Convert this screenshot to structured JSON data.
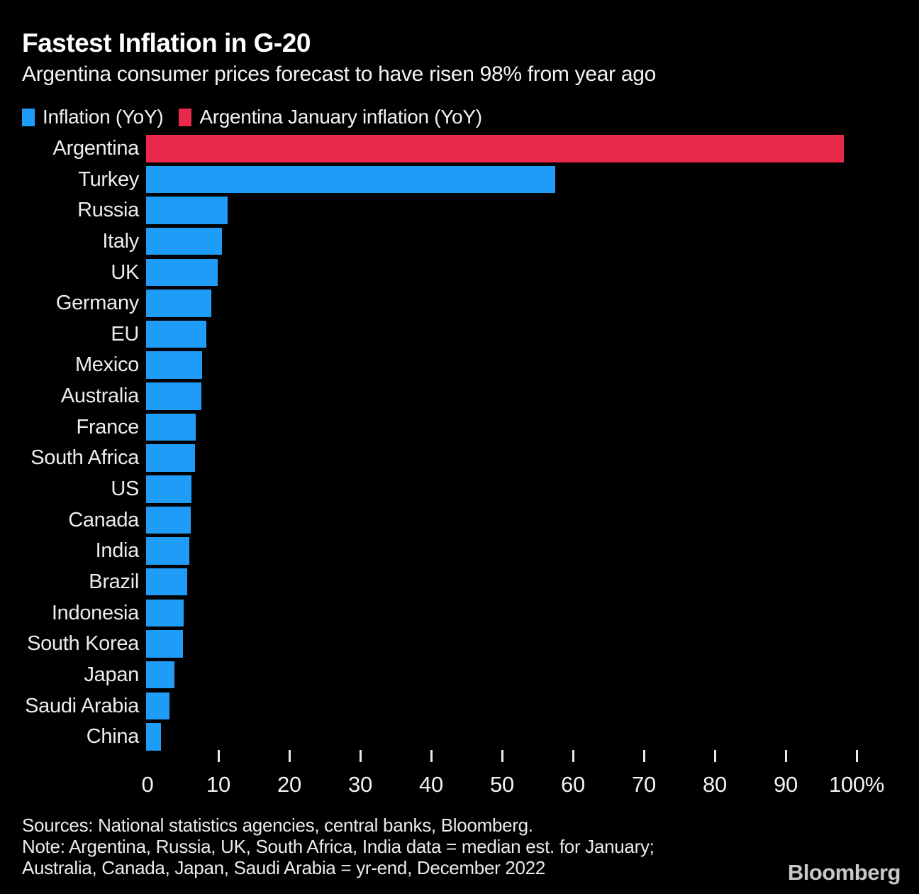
{
  "chart_data": {
    "type": "bar",
    "orientation": "horizontal",
    "title": "Fastest Inflation in G-20",
    "subtitle": "Argentina consumer prices forecast to have risen 98% from year ago",
    "unit": "%",
    "xlim": [
      0,
      100
    ],
    "x_ticks": [
      0,
      10,
      20,
      30,
      40,
      50,
      60,
      70,
      80,
      90,
      100
    ],
    "x_tick_labels": [
      "0",
      "10",
      "20",
      "30",
      "40",
      "50",
      "60",
      "70",
      "80",
      "90",
      "100%"
    ],
    "grid": "off",
    "legend_position": "top",
    "background_color": "#000000",
    "series": [
      {
        "name": "Inflation (YoY)",
        "color": "#1f9cf7"
      },
      {
        "name": "Argentina January inflation (YoY)",
        "color": "#e9294b"
      }
    ],
    "bars": [
      {
        "category": "Argentina",
        "value": 98.4,
        "series": "Argentina January inflation (YoY)"
      },
      {
        "category": "Turkey",
        "value": 57.7,
        "series": "Inflation (YoY)"
      },
      {
        "category": "Russia",
        "value": 11.5,
        "series": "Inflation (YoY)"
      },
      {
        "category": "Italy",
        "value": 10.7,
        "series": "Inflation (YoY)"
      },
      {
        "category": "UK",
        "value": 10.1,
        "series": "Inflation (YoY)"
      },
      {
        "category": "Germany",
        "value": 9.2,
        "series": "Inflation (YoY)"
      },
      {
        "category": "EU",
        "value": 8.5,
        "series": "Inflation (YoY)"
      },
      {
        "category": "Mexico",
        "value": 7.9,
        "series": "Inflation (YoY)"
      },
      {
        "category": "Australia",
        "value": 7.8,
        "series": "Inflation (YoY)"
      },
      {
        "category": "France",
        "value": 7.0,
        "series": "Inflation (YoY)"
      },
      {
        "category": "South Africa",
        "value": 6.9,
        "series": "Inflation (YoY)"
      },
      {
        "category": "US",
        "value": 6.4,
        "series": "Inflation (YoY)"
      },
      {
        "category": "Canada",
        "value": 6.3,
        "series": "Inflation (YoY)"
      },
      {
        "category": "India",
        "value": 6.1,
        "series": "Inflation (YoY)"
      },
      {
        "category": "Brazil",
        "value": 5.8,
        "series": "Inflation (YoY)"
      },
      {
        "category": "Indonesia",
        "value": 5.3,
        "series": "Inflation (YoY)"
      },
      {
        "category": "South Korea",
        "value": 5.2,
        "series": "Inflation (YoY)"
      },
      {
        "category": "Japan",
        "value": 4.0,
        "series": "Inflation (YoY)"
      },
      {
        "category": "Saudi Arabia",
        "value": 3.3,
        "series": "Inflation (YoY)"
      },
      {
        "category": "China",
        "value": 2.1,
        "series": "Inflation (YoY)"
      }
    ]
  },
  "footer": {
    "sources": "Sources: National statistics agencies, central banks, Bloomberg.",
    "note_line1": "Note: Argentina, Russia, UK, South Africa, India data = median est. for January;",
    "note_line2": "Australia, Canada, Japan, Saudi Arabia = yr-end, December 2022",
    "brand": "Bloomberg"
  }
}
